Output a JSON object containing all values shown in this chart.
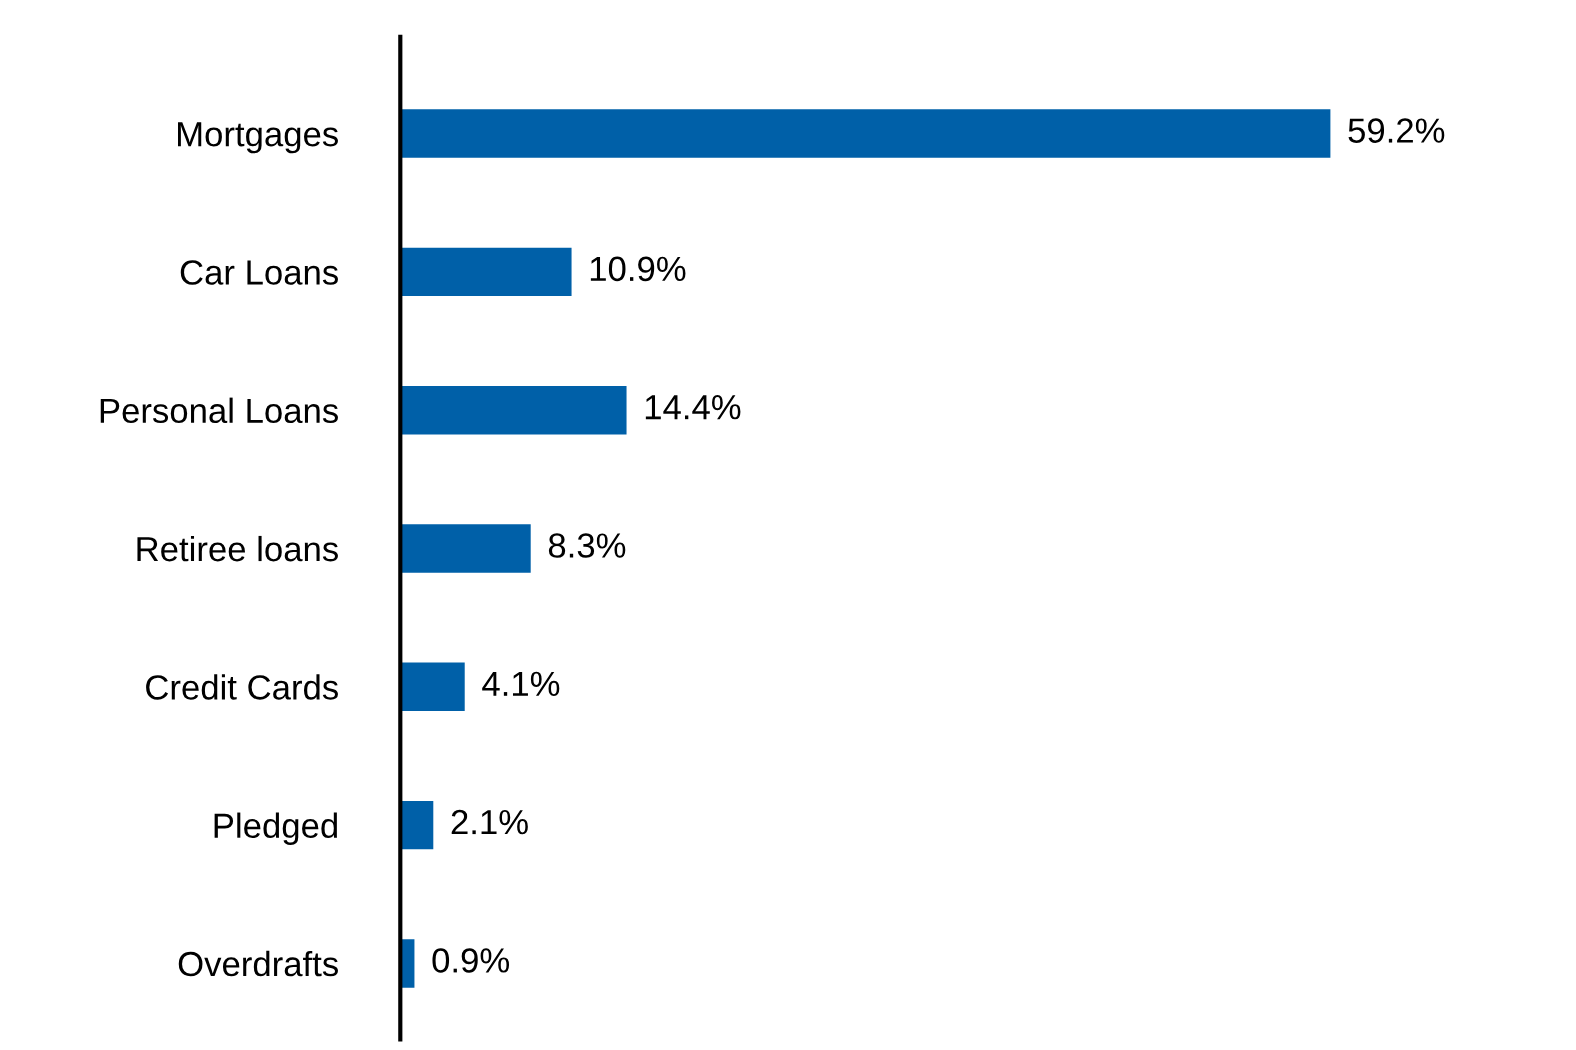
{
  "chart_data": {
    "type": "bar",
    "orientation": "horizontal",
    "categories": [
      "Mortgages",
      "Car Loans",
      "Personal Loans",
      "Retiree loans",
      "Credit Cards",
      "Pledged",
      "Overdrafts"
    ],
    "values": [
      59.2,
      10.9,
      14.4,
      8.3,
      4.1,
      2.1,
      0.9
    ],
    "value_labels": [
      "59.2%",
      "10.9%",
      "14.4%",
      "8.3%",
      "4.1%",
      "2.1%",
      "0.9%"
    ],
    "color": "#0060a8",
    "grid": false,
    "legend": false
  }
}
